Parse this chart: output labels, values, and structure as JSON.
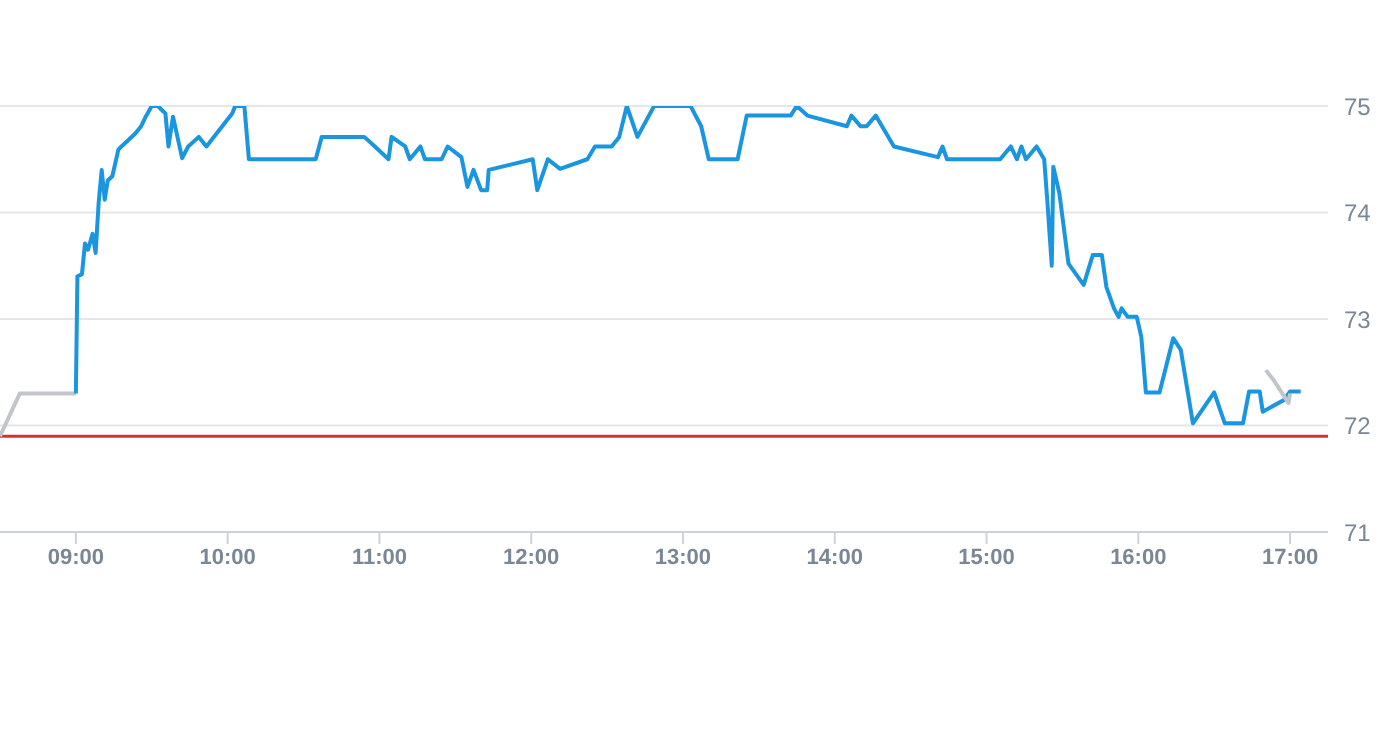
{
  "chart_data": {
    "type": "line",
    "xlim": [
      8.5,
      17.25
    ],
    "xticks": [
      {
        "value": 9,
        "label": "09:00"
      },
      {
        "value": 10,
        "label": "10:00"
      },
      {
        "value": 11,
        "label": "11:00"
      },
      {
        "value": 12,
        "label": "12:00"
      },
      {
        "value": 13,
        "label": "13:00"
      },
      {
        "value": 14,
        "label": "14:00"
      },
      {
        "value": 15,
        "label": "15:00"
      },
      {
        "value": 16,
        "label": "16:00"
      },
      {
        "value": 17,
        "label": "17:00"
      }
    ],
    "ylim": [
      71,
      75
    ],
    "yticks": [
      71,
      72,
      73,
      74,
      75
    ],
    "grid": "y",
    "ref_lines": [
      {
        "axis": "y",
        "value": 71.9,
        "color": "#d9302f"
      }
    ],
    "series": [
      {
        "color": "#c2c6cb",
        "x": [
          8.5,
          8.63,
          9.0
        ],
        "values": [
          71.9,
          72.3,
          72.3
        ]
      },
      {
        "color": "#1a96e0",
        "x": [
          9.0,
          9.01,
          9.04,
          9.06,
          9.08,
          9.11,
          9.13,
          9.15,
          9.17,
          9.19,
          9.21,
          9.24,
          9.28,
          9.3,
          9.39,
          9.43,
          9.46,
          9.5,
          9.54,
          9.59,
          9.61,
          9.64,
          9.7,
          9.74,
          9.81,
          9.86,
          10.03,
          10.05,
          10.11,
          10.14,
          10.58,
          10.62,
          10.9,
          10.97,
          11.06,
          11.08,
          11.17,
          11.2,
          11.27,
          11.3,
          11.41,
          11.45,
          11.54,
          11.58,
          11.62,
          11.67,
          11.71,
          11.72,
          12.01,
          12.04,
          12.11,
          12.19,
          12.37,
          12.42,
          12.53,
          12.58,
          12.63,
          12.7,
          12.81,
          13.05,
          13.12,
          13.17,
          13.36,
          13.42,
          13.71,
          13.75,
          13.82,
          14.08,
          14.11,
          14.17,
          14.21,
          14.27,
          14.39,
          14.68,
          14.71,
          14.74,
          15.09,
          15.16,
          15.2,
          15.23,
          15.26,
          15.33,
          15.38,
          15.4,
          15.43,
          15.44,
          15.48,
          15.54,
          15.64,
          15.7,
          15.76,
          15.79,
          15.84,
          15.87,
          15.89,
          15.93,
          15.99,
          16.02,
          16.05,
          16.14,
          16.23,
          16.28,
          16.36,
          16.5,
          16.57,
          16.69,
          16.73,
          16.8,
          16.82,
          16.96,
          17.0,
          17.07
        ],
        "values": [
          72.3,
          73.4,
          73.42,
          73.71,
          73.65,
          73.8,
          73.62,
          74.09,
          74.4,
          74.12,
          74.3,
          74.34,
          74.59,
          74.62,
          74.74,
          74.81,
          74.9,
          75,
          75,
          74.93,
          74.62,
          74.9,
          74.51,
          74.62,
          74.71,
          74.62,
          74.93,
          75,
          75,
          74.5,
          74.5,
          74.71,
          74.71,
          74.62,
          74.5,
          74.71,
          74.62,
          74.5,
          74.62,
          74.5,
          74.5,
          74.62,
          74.52,
          74.24,
          74.4,
          74.21,
          74.21,
          74.4,
          74.5,
          74.21,
          74.5,
          74.41,
          74.5,
          74.62,
          74.62,
          74.71,
          75,
          74.71,
          75,
          75,
          74.81,
          74.5,
          74.5,
          74.91,
          74.91,
          75,
          74.91,
          74.81,
          74.91,
          74.81,
          74.81,
          74.91,
          74.62,
          74.52,
          74.62,
          74.5,
          74.5,
          74.62,
          74.5,
          74.62,
          74.5,
          74.62,
          74.5,
          74.12,
          73.5,
          74.43,
          74.18,
          73.52,
          73.32,
          73.6,
          73.6,
          73.3,
          73.1,
          73.02,
          73.1,
          73.02,
          73.02,
          72.83,
          72.31,
          72.31,
          72.82,
          72.71,
          72.02,
          72.31,
          72.02,
          72.02,
          72.32,
          72.32,
          72.13,
          72.24,
          72.32,
          72.32
        ]
      },
      {
        "color": "#c2c6cb",
        "x": [
          16.84,
          16.89,
          16.99,
          17.0
        ],
        "values": [
          72.52,
          72.43,
          72.21,
          72.3
        ]
      }
    ]
  }
}
